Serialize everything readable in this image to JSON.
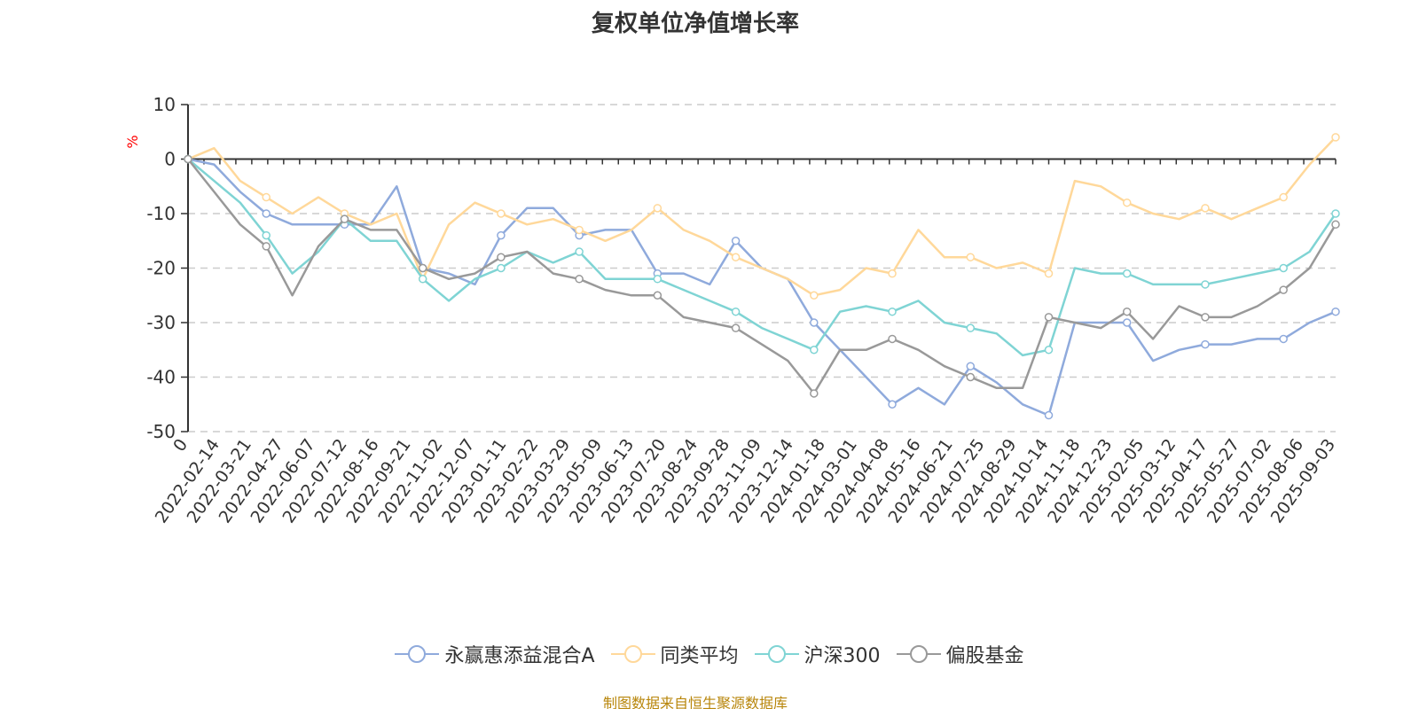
{
  "title": "复权单位净值增长率",
  "source_note": "制图数据来自恒生聚源数据库",
  "colors": {
    "series_0": "#8FAADC",
    "series_1": "#FFD89A",
    "series_2": "#7FD4D4",
    "series_3": "#999999",
    "unit_label": "#ff0000",
    "axis": "#333333",
    "grid": "#cccccc"
  },
  "chart_data": {
    "type": "line",
    "ylabel": "%",
    "ylim": [
      -50,
      10
    ],
    "yticks": [
      10,
      0,
      -10,
      -20,
      -30,
      -40,
      -50
    ],
    "grid": "horizontal-dashed",
    "legend_position": "bottom",
    "x_tick_labels": [
      "0",
      "2022-02-14",
      "2022-03-21",
      "2022-04-27",
      "2022-06-07",
      "2022-07-12",
      "2022-08-16",
      "2022-09-21",
      "2022-11-02",
      "2022-12-07",
      "2023-01-11",
      "2023-02-22",
      "2023-03-29",
      "2023-05-09",
      "2023-06-13",
      "2023-07-20",
      "2023-08-24",
      "2023-09-28",
      "2023-11-09",
      "2023-12-14",
      "2024-01-18",
      "2024-03-01",
      "2024-04-08",
      "2024-05-16",
      "2024-06-21",
      "2024-07-25",
      "2024-08-29",
      "2024-10-14",
      "2024-11-18",
      "2024-12-23",
      "2025-02-05",
      "2025-03-12",
      "2025-04-17",
      "2025-05-27",
      "2025-07-02",
      "2025-08-06",
      "2025-09-03"
    ],
    "series": [
      {
        "name": "永赢惠添益混合A",
        "values": [
          0,
          -1,
          -6,
          -10,
          -12,
          -12,
          -12,
          -12,
          -5,
          -20,
          -21,
          -23,
          -14,
          -9,
          -9,
          -14,
          -13,
          -13,
          -21,
          -21,
          -23,
          -15,
          -20,
          -22,
          -30,
          -35,
          -40,
          -45,
          -42,
          -45,
          -38,
          -41,
          -45,
          -47,
          -30,
          -30,
          -30,
          -37,
          -35,
          -34,
          -34,
          -33,
          -33,
          -30,
          -28
        ]
      },
      {
        "name": "同类平均",
        "values": [
          0,
          2,
          -4,
          -7,
          -10,
          -7,
          -10,
          -12,
          -10,
          -22,
          -12,
          -8,
          -10,
          -12,
          -11,
          -13,
          -15,
          -13,
          -9,
          -13,
          -15,
          -18,
          -20,
          -22,
          -25,
          -24,
          -20,
          -21,
          -13,
          -18,
          -18,
          -20,
          -19,
          -21,
          -4,
          -5,
          -8,
          -10,
          -11,
          -9,
          -11,
          -9,
          -7,
          -1,
          4
        ]
      },
      {
        "name": "沪深300",
        "values": [
          0,
          -4,
          -8,
          -14,
          -21,
          -17,
          -11,
          -15,
          -15,
          -22,
          -26,
          -22,
          -20,
          -17,
          -19,
          -17,
          -22,
          -22,
          -22,
          -24,
          -26,
          -28,
          -31,
          -33,
          -35,
          -28,
          -27,
          -28,
          -26,
          -30,
          -31,
          -32,
          -36,
          -35,
          -20,
          -21,
          -21,
          -23,
          -23,
          -23,
          -22,
          -21,
          -20,
          -17,
          -10
        ]
      },
      {
        "name": "偏股基金",
        "values": [
          0,
          -6,
          -12,
          -16,
          -25,
          -16,
          -11,
          -13,
          -13,
          -20,
          -22,
          -21,
          -18,
          -17,
          -21,
          -22,
          -24,
          -25,
          -25,
          -29,
          -30,
          -31,
          -34,
          -37,
          -43,
          -35,
          -35,
          -33,
          -35,
          -38,
          -40,
          -42,
          -42,
          -29,
          -30,
          -31,
          -28,
          -33,
          -27,
          -29,
          -29,
          -27,
          -24,
          -20,
          -12
        ]
      }
    ]
  }
}
